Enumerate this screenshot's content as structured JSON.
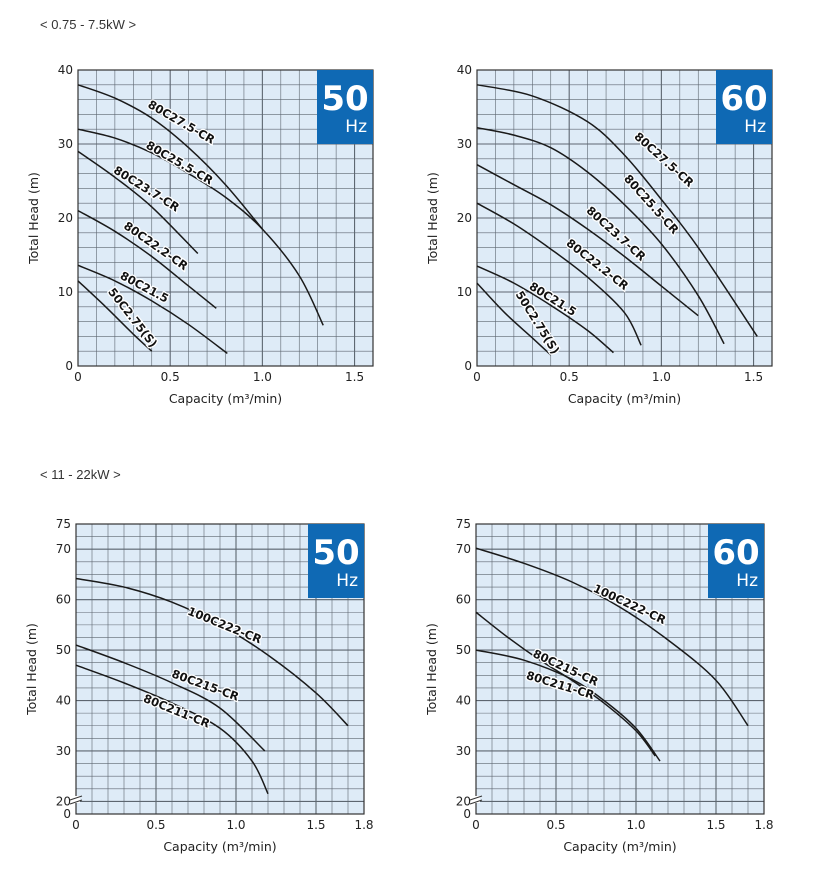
{
  "sections": [
    {
      "label": "< 0.75 - 7.5kW >"
    },
    {
      "label": "< 11 - 22kW >"
    }
  ],
  "colors": {
    "plot_bg": "#deebf7",
    "grid": "#5d6670",
    "curve": "#1a1a1a",
    "badge_bg": "#0f69b4",
    "badge_text": "#ffffff"
  },
  "chart_data": [
    {
      "type": "line",
      "badge": {
        "freq": "50",
        "unit": "Hz"
      },
      "xlabel": "Capacity (m³/min)",
      "ylabel": "Total Head (m)",
      "xlim": [
        0,
        1.6
      ],
      "ylim": [
        0,
        40
      ],
      "xticks": [
        {
          "v": 0,
          "t": "0"
        },
        {
          "v": 0.5,
          "t": "0.5"
        },
        {
          "v": 1.0,
          "t": "1.0"
        },
        {
          "v": 1.5,
          "t": "1.5"
        }
      ],
      "yticks": [
        {
          "v": 0,
          "t": "0"
        },
        {
          "v": 10,
          "t": "10"
        },
        {
          "v": 20,
          "t": "20"
        },
        {
          "v": 30,
          "t": "30"
        },
        {
          "v": 40,
          "t": "40"
        }
      ],
      "series": [
        {
          "name": "80C27.5-CR",
          "x": [
            0,
            0.2,
            0.4,
            0.6,
            0.8,
            1.0
          ],
          "y": [
            38,
            36.2,
            33.5,
            29.5,
            24.5,
            18.5
          ],
          "lx": 0.55,
          "ly": 32.5
        },
        {
          "name": "80C25.5-CR",
          "x": [
            0,
            0.2,
            0.4,
            0.6,
            0.8,
            1.0,
            1.2,
            1.33
          ],
          "y": [
            32,
            30.8,
            28.8,
            26,
            22.8,
            18.5,
            12.2,
            5.5
          ],
          "lx": 0.54,
          "ly": 27
        },
        {
          "name": "80C23.7-CR",
          "x": [
            0,
            0.2,
            0.4,
            0.65
          ],
          "y": [
            29,
            25.5,
            21.5,
            15.2
          ],
          "lx": 0.36,
          "ly": 23.5
        },
        {
          "name": "80C22.2-CR",
          "x": [
            0,
            0.2,
            0.4,
            0.6,
            0.75
          ],
          "y": [
            21,
            18.2,
            14.8,
            10.8,
            7.8
          ],
          "lx": 0.41,
          "ly": 15.8
        },
        {
          "name": "80C21.5",
          "x": [
            0,
            0.2,
            0.4,
            0.6,
            0.81
          ],
          "y": [
            13.6,
            11.5,
            8.8,
            5.6,
            1.7
          ],
          "lx": 0.35,
          "ly": 10.2
        },
        {
          "name": "50C2.75(S)",
          "x": [
            0,
            0.15,
            0.3,
            0.4
          ],
          "y": [
            11.5,
            8,
            4.3,
            2
          ],
          "lx": 0.28,
          "ly": 6.2
        }
      ]
    },
    {
      "type": "line",
      "badge": {
        "freq": "60",
        "unit": "Hz"
      },
      "xlabel": "Capacity (m³/min)",
      "ylabel": "Total Head (m)",
      "xlim": [
        0,
        1.6
      ],
      "ylim": [
        0,
        40
      ],
      "xticks": [
        {
          "v": 0,
          "t": "0"
        },
        {
          "v": 0.5,
          "t": "0.5"
        },
        {
          "v": 1.0,
          "t": "1.0"
        },
        {
          "v": 1.5,
          "t": "1.5"
        }
      ],
      "yticks": [
        {
          "v": 0,
          "t": "0"
        },
        {
          "v": 10,
          "t": "10"
        },
        {
          "v": 20,
          "t": "20"
        },
        {
          "v": 30,
          "t": "30"
        },
        {
          "v": 40,
          "t": "40"
        }
      ],
      "series": [
        {
          "name": "80C27.5-CR",
          "x": [
            0,
            0.3,
            0.6,
            0.8,
            1.0,
            1.2,
            1.52
          ],
          "y": [
            38,
            36.5,
            33,
            28.5,
            22.5,
            16,
            4
          ],
          "lx": 1.0,
          "ly": 27.5
        },
        {
          "name": "80C25.5-CR",
          "x": [
            0,
            0.2,
            0.4,
            0.6,
            0.8,
            1.0,
            1.2,
            1.34
          ],
          "y": [
            32.2,
            31.2,
            29.5,
            26.2,
            21.8,
            16.5,
            9.5,
            3
          ],
          "lx": 0.93,
          "ly": 21.5
        },
        {
          "name": "80C23.7-CR",
          "x": [
            0,
            0.2,
            0.4,
            0.6,
            0.8,
            1.0,
            1.2
          ],
          "y": [
            27.2,
            24.5,
            21.8,
            18.5,
            14.8,
            10.8,
            6.8
          ],
          "lx": 0.74,
          "ly": 17.5
        },
        {
          "name": "80C22.2-CR",
          "x": [
            0,
            0.2,
            0.4,
            0.6,
            0.8,
            0.89
          ],
          "y": [
            22,
            19.2,
            15.8,
            12,
            7.2,
            2.8
          ],
          "lx": 0.64,
          "ly": 13.3
        },
        {
          "name": "80C21.5",
          "x": [
            0,
            0.2,
            0.4,
            0.6,
            0.74
          ],
          "y": [
            13.5,
            11.2,
            8.2,
            4.8,
            1.8
          ],
          "lx": 0.4,
          "ly": 8.6
        },
        {
          "name": "50C2.75(S)",
          "x": [
            0,
            0.15,
            0.3,
            0.4
          ],
          "y": [
            11.2,
            7.2,
            3.8,
            1.5
          ],
          "lx": 0.31,
          "ly": 5.6
        }
      ]
    },
    {
      "type": "line",
      "badge": {
        "freq": "50",
        "unit": "Hz"
      },
      "xlabel": "Capacity (m³/min)",
      "ylabel": "Total Head (m)",
      "xlim": [
        0,
        1.8
      ],
      "ylim": [
        17.5,
        75
      ],
      "axis_break": true,
      "xticks": [
        {
          "v": 0,
          "t": "0"
        },
        {
          "v": 0.5,
          "t": "0.5"
        },
        {
          "v": 1.0,
          "t": "1.0"
        },
        {
          "v": 1.5,
          "t": "1.5"
        },
        {
          "v": 1.8,
          "t": "1.8"
        }
      ],
      "yticks": [
        {
          "v": 17.5,
          "t": "0"
        },
        {
          "v": 20,
          "t": "20"
        },
        {
          "v": 30,
          "t": "30"
        },
        {
          "v": 40,
          "t": "40"
        },
        {
          "v": 50,
          "t": "50"
        },
        {
          "v": 60,
          "t": "60"
        },
        {
          "v": 70,
          "t": "70"
        },
        {
          "v": 75,
          "t": "75"
        }
      ],
      "series": [
        {
          "name": "100C222-CR",
          "x": [
            0,
            0.3,
            0.6,
            0.9,
            1.2,
            1.5,
            1.7
          ],
          "y": [
            64.2,
            62.5,
            59.5,
            55,
            49,
            41.5,
            35
          ],
          "lx": 0.92,
          "ly": 54.2
        },
        {
          "name": "80C215-CR",
          "x": [
            0,
            0.3,
            0.6,
            0.9,
            1.18
          ],
          "y": [
            51,
            47.5,
            43.5,
            38.5,
            30
          ],
          "lx": 0.8,
          "ly": 42.3
        },
        {
          "name": "80C211-CR",
          "x": [
            0,
            0.3,
            0.6,
            0.9,
            1.1,
            1.2
          ],
          "y": [
            47,
            43.5,
            39.5,
            34.5,
            28,
            21.5
          ],
          "lx": 0.62,
          "ly": 37.2
        }
      ]
    },
    {
      "type": "line",
      "badge": {
        "freq": "60",
        "unit": "Hz"
      },
      "xlabel": "Capacity (m³/min)",
      "ylabel": "Total Head (m)",
      "xlim": [
        0,
        1.8
      ],
      "ylim": [
        17.5,
        75
      ],
      "axis_break": true,
      "xticks": [
        {
          "v": 0,
          "t": "0"
        },
        {
          "v": 0.5,
          "t": "0.5"
        },
        {
          "v": 1.0,
          "t": "1.0"
        },
        {
          "v": 1.5,
          "t": "1.5"
        },
        {
          "v": 1.8,
          "t": "1.8"
        }
      ],
      "yticks": [
        {
          "v": 17.5,
          "t": "0"
        },
        {
          "v": 20,
          "t": "20"
        },
        {
          "v": 30,
          "t": "30"
        },
        {
          "v": 40,
          "t": "40"
        },
        {
          "v": 50,
          "t": "50"
        },
        {
          "v": 60,
          "t": "60"
        },
        {
          "v": 70,
          "t": "70"
        },
        {
          "v": 75,
          "t": "75"
        }
      ],
      "series": [
        {
          "name": "100C222-CR",
          "x": [
            0,
            0.3,
            0.6,
            0.9,
            1.2,
            1.5,
            1.7
          ],
          "y": [
            70.2,
            67.2,
            63.5,
            58.5,
            52,
            44,
            35
          ],
          "lx": 0.95,
          "ly": 58.4
        },
        {
          "name": "80C215-CR",
          "x": [
            0,
            0.2,
            0.4,
            0.6,
            0.8,
            1.0,
            1.12
          ],
          "y": [
            57.5,
            52.5,
            48,
            44,
            39.5,
            34,
            29
          ],
          "lx": 0.55,
          "ly": 45.8
        },
        {
          "name": "80C211-CR",
          "x": [
            0,
            0.3,
            0.6,
            0.8,
            1.0,
            1.15
          ],
          "y": [
            50,
            48,
            44.2,
            40,
            34.5,
            28
          ],
          "lx": 0.52,
          "ly": 42.3
        }
      ]
    }
  ]
}
